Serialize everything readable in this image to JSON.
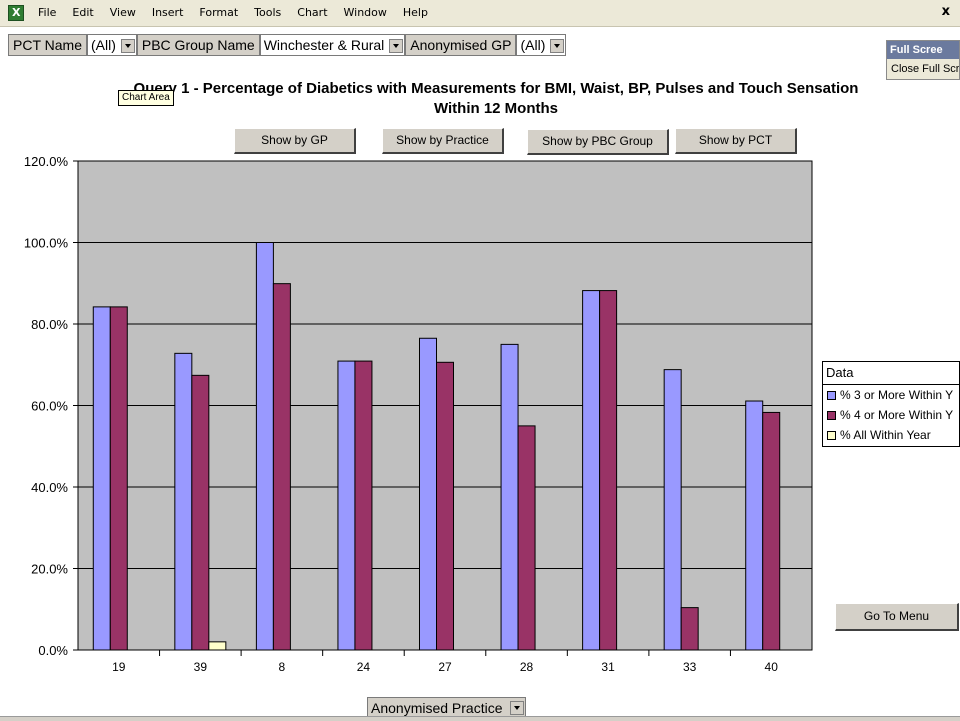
{
  "menubar": {
    "items": [
      "File",
      "Edit",
      "View",
      "Insert",
      "Format",
      "Tools",
      "Chart",
      "Window",
      "Help"
    ],
    "close_glyph": "x"
  },
  "pivot": {
    "pct_label": "PCT Name",
    "pct_value": "(All)",
    "pbc_label": "PBC Group Name",
    "pbc_value": "Winchester & Rural",
    "gp_label": "Anonymised GP",
    "gp_value": "(All)"
  },
  "fullscreen": {
    "title": "Full Scree",
    "close_label": "Close Full Scree"
  },
  "tooltip": "Chart Area",
  "buttons": {
    "gp": "Show by GP",
    "practice": "Show by Practice",
    "pbc": "Show by PBC Group",
    "pct": "Show by PCT",
    "menu": "Go To Menu"
  },
  "bottom_field": "Anonymised Practice",
  "legend": {
    "title": "Data"
  },
  "chart_data": {
    "type": "bar",
    "title_line1": "Query 1 - Percentage of Diabetics with Measurements for BMI, Waist, BP, Pulses and Touch Sensation",
    "title_line2": "Within 12 Months",
    "categories": [
      "19",
      "39",
      "8",
      "24",
      "27",
      "28",
      "31",
      "33",
      "40"
    ],
    "series": [
      {
        "name": "% 3 or More Within Y",
        "color": "#9999ff",
        "values": [
          84.2,
          72.8,
          100.0,
          70.9,
          76.5,
          75.0,
          88.2,
          68.8,
          61.1
        ]
      },
      {
        "name": "% 4 or More Within Y",
        "color": "#993366",
        "values": [
          84.2,
          67.4,
          89.9,
          70.9,
          70.6,
          55.0,
          88.2,
          10.4,
          58.3
        ]
      },
      {
        "name": "% All Within Year",
        "color": "#ffffcc",
        "values": [
          0,
          2.0,
          0,
          0,
          0,
          0,
          0,
          0,
          0
        ]
      }
    ],
    "yticks": [
      "0.0%",
      "20.0%",
      "40.0%",
      "60.0%",
      "80.0%",
      "100.0%",
      "120.0%"
    ],
    "ylim": [
      0,
      120
    ],
    "plot_bg": "#c0c0c0",
    "grid": true,
    "legend_position": "right"
  }
}
